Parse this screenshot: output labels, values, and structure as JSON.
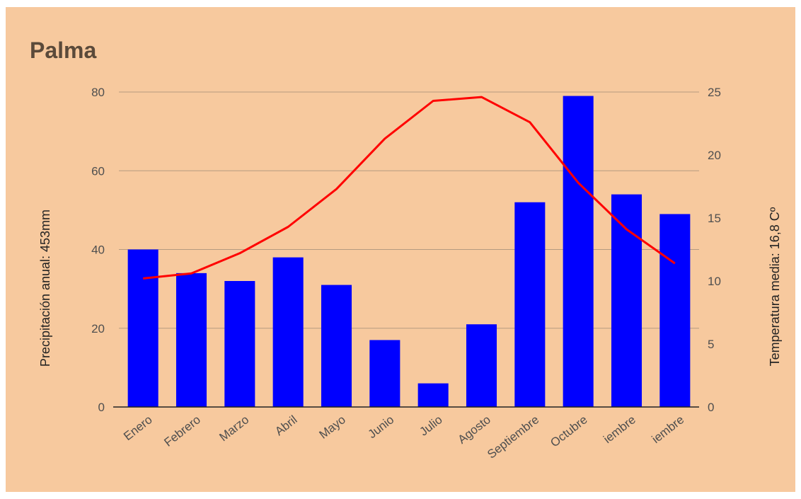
{
  "chart_data": {
    "type": "bar",
    "title": "Palma",
    "categories": [
      "Enero",
      "Febrero",
      "Marzo",
      "Abril",
      "Mayo",
      "Junio",
      "Julio",
      "Agosto",
      "Septiembre",
      "Octubre",
      "Noviembre",
      "Diciembre"
    ],
    "category_labels_shown": [
      "Enero",
      "Febrero",
      "Marzo",
      "Abril",
      "Mayo",
      "Junio",
      "Julio",
      "Agosto",
      "Septiembre",
      "Octubre",
      "iembre",
      "iembre"
    ],
    "ylabel": "Precipitación anual: 453mm",
    "y2label": "Temperatura media: 16,8 Cº",
    "ylim": [
      0,
      80
    ],
    "y_ticks": [
      "0",
      "20",
      "40",
      "60",
      "80"
    ],
    "y2lim": [
      0,
      25
    ],
    "y2_ticks": [
      "0",
      "5",
      "10",
      "15",
      "20",
      "25"
    ],
    "grid": true,
    "legend": "none",
    "series": [
      {
        "type": "bar",
        "axis": "left",
        "color": "#0000ff",
        "values": [
          40,
          34,
          32,
          38,
          31,
          17,
          6,
          21,
          52,
          79,
          54,
          49
        ]
      },
      {
        "type": "line",
        "axis": "right",
        "color": "#ff0000",
        "values": [
          10.2,
          10.6,
          12.2,
          14.3,
          17.3,
          21.3,
          24.3,
          24.6,
          22.6,
          17.8,
          14.1,
          11.4
        ]
      }
    ]
  }
}
